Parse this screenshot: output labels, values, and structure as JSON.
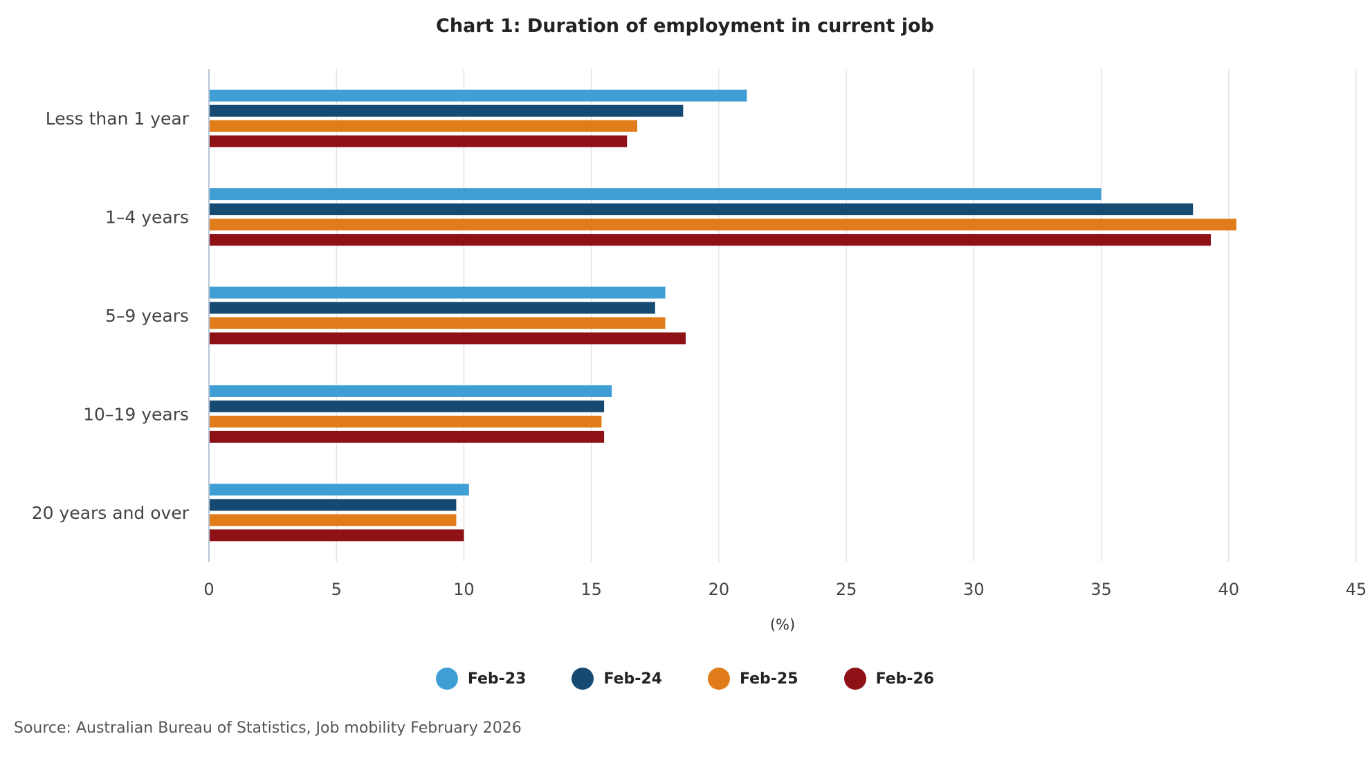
{
  "chart_data": {
    "type": "bar",
    "orientation": "horizontal",
    "title": "Chart 1: Duration of employment in current job",
    "xlabel": "(%)",
    "ylabel": "",
    "xlim": [
      0,
      45
    ],
    "x_ticks": [
      0,
      5,
      10,
      15,
      20,
      25,
      30,
      35,
      40,
      45
    ],
    "grid": true,
    "legend_position": "bottom",
    "categories": [
      "Less than 1 year",
      "1–4 years",
      "5–9 years",
      "10–19 years",
      "20 years and over"
    ],
    "series": [
      {
        "name": "Feb-23",
        "color": "#3f9fd5",
        "values": [
          21.1,
          35.0,
          17.9,
          15.8,
          10.2
        ]
      },
      {
        "name": "Feb-24",
        "color": "#154b73",
        "values": [
          18.6,
          38.6,
          17.5,
          15.5,
          9.7
        ]
      },
      {
        "name": "Feb-25",
        "color": "#e07c19",
        "values": [
          16.8,
          40.3,
          17.9,
          15.4,
          9.7
        ]
      },
      {
        "name": "Feb-26",
        "color": "#8e1116",
        "values": [
          16.4,
          39.3,
          18.7,
          15.5,
          10.0
        ]
      }
    ]
  },
  "source": "Source: Australian Bureau of Statistics, Job mobility February 2026"
}
